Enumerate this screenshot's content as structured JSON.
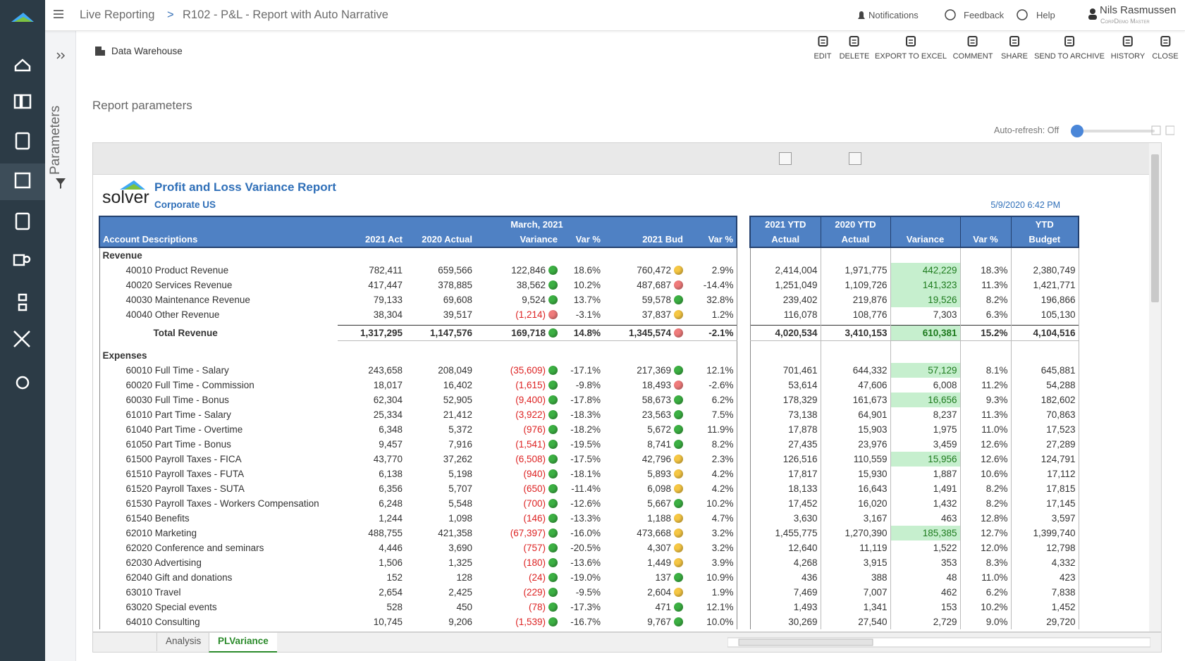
{
  "header": {
    "breadcrumb": [
      "Live Reporting",
      "R102 - P&L - Report with Auto Narrative"
    ],
    "separator": ">",
    "notifications": "Notifications",
    "feedback": "Feedback",
    "help": "Help",
    "user": "Nils Rasmussen",
    "company": "CorpDemo Master"
  },
  "toolbar": {
    "source": "Data Warehouse",
    "actions": [
      "EDIT",
      "DELETE",
      "EXPORT TO EXCEL",
      "COMMENT",
      "SHARE",
      "SEND TO ARCHIVE",
      "HISTORY",
      "CLOSE"
    ]
  },
  "sidebar": {
    "parameters": "Parameters"
  },
  "parameters": {
    "title": "Report parameters",
    "auto_refresh": "Auto-refresh: Off"
  },
  "report": {
    "logo": "solver",
    "title": "Profit and Loss Variance Report",
    "subtitle": "Corporate US",
    "timestamp": "5/9/2020 6:42 PM",
    "columns": {
      "account": "Account Descriptions",
      "period": "March, 2021",
      "period_columns": [
        "2021 Act",
        "2020 Actual",
        "Variance",
        "Var %",
        "2021 Bud",
        "Var %"
      ],
      "ytd_columns": [
        [
          "2021 YTD",
          "Actual"
        ],
        [
          "2020 YTD",
          "Actual"
        ],
        [
          "Variance"
        ],
        [
          "Var %"
        ],
        [
          "YTD",
          "Budget"
        ]
      ]
    },
    "sections": [
      {
        "title": "Revenue",
        "rows": [
          {
            "label": "40010 Product Revenue",
            "cells": [
              "782,411",
              "659,566",
              "122,846",
              "18.6%",
              "760,472",
              "2.9%",
              "2,414,004",
              "1,971,775",
              "442,229",
              "18.3%",
              "2,380,749"
            ],
            "status": [
              "green",
              "yellow"
            ],
            "highlight": true
          },
          {
            "label": "40020 Services Revenue",
            "cells": [
              "417,447",
              "378,885",
              "38,562",
              "10.2%",
              "487,687",
              "-14.4%",
              "1,251,049",
              "1,109,726",
              "141,323",
              "11.3%",
              "1,421,771"
            ],
            "status": [
              "green",
              "red"
            ],
            "highlight": true
          },
          {
            "label": "40030 Maintenance Revenue",
            "cells": [
              "79,133",
              "69,608",
              "9,524",
              "13.7%",
              "59,578",
              "32.8%",
              "239,402",
              "219,876",
              "19,526",
              "8.2%",
              "196,866"
            ],
            "status": [
              "green",
              "green"
            ],
            "highlight": true
          },
          {
            "label": "40040 Other Revenue",
            "cells": [
              "38,304",
              "39,517",
              "(1,214)",
              "-3.1%",
              "37,837",
              "1.2%",
              "116,078",
              "108,776",
              "7,303",
              "6.3%",
              "105,130"
            ],
            "status": [
              "red",
              "yellow"
            ]
          }
        ],
        "total": {
          "label": "Total Revenue",
          "cells": [
            "1,317,295",
            "1,147,576",
            "169,718",
            "14.8%",
            "1,345,574",
            "-2.1%",
            "4,020,534",
            "3,410,153",
            "610,381",
            "15.2%",
            "4,104,516"
          ],
          "status": [
            "green",
            "red"
          ],
          "highlight": true
        }
      },
      {
        "title": "Expenses",
        "rows": [
          {
            "label": "60010 Full Time - Salary",
            "cells": [
              "243,658",
              "208,049",
              "(35,609)",
              "-17.1%",
              "217,369",
              "12.1%",
              "701,461",
              "644,332",
              "57,129",
              "8.1%",
              "645,881"
            ],
            "status": [
              "green",
              "green"
            ],
            "highlight": true
          },
          {
            "label": "60020 Full Time - Commission",
            "cells": [
              "18,017",
              "16,402",
              "(1,615)",
              "-9.8%",
              "18,493",
              "-2.6%",
              "53,614",
              "47,606",
              "6,008",
              "11.2%",
              "54,288"
            ],
            "status": [
              "green",
              "red"
            ]
          },
          {
            "label": "60030 Full Time - Bonus",
            "cells": [
              "62,304",
              "52,905",
              "(9,400)",
              "-17.8%",
              "58,673",
              "6.2%",
              "178,329",
              "161,673",
              "16,656",
              "9.3%",
              "182,602"
            ],
            "status": [
              "green",
              "green"
            ],
            "highlight": true
          },
          {
            "label": "61010 Part Time - Salary",
            "cells": [
              "25,334",
              "21,412",
              "(3,922)",
              "-18.3%",
              "23,563",
              "7.5%",
              "73,138",
              "64,901",
              "8,237",
              "11.3%",
              "70,863"
            ],
            "status": [
              "green",
              "green"
            ]
          },
          {
            "label": "61040 Part Time - Overtime",
            "cells": [
              "6,348",
              "5,372",
              "(976)",
              "-18.2%",
              "5,672",
              "11.9%",
              "17,878",
              "15,903",
              "1,975",
              "11.0%",
              "17,523"
            ],
            "status": [
              "green",
              "green"
            ]
          },
          {
            "label": "61050 Part Time - Bonus",
            "cells": [
              "9,457",
              "7,916",
              "(1,541)",
              "-19.5%",
              "8,741",
              "8.2%",
              "27,435",
              "23,976",
              "3,459",
              "12.6%",
              "27,289"
            ],
            "status": [
              "green",
              "green"
            ]
          },
          {
            "label": "61500 Payroll Taxes - FICA",
            "cells": [
              "43,770",
              "37,262",
              "(6,508)",
              "-17.5%",
              "42,796",
              "2.3%",
              "126,516",
              "110,559",
              "15,956",
              "12.6%",
              "124,791"
            ],
            "status": [
              "green",
              "yellow"
            ],
            "highlight": true
          },
          {
            "label": "61510 Payroll Taxes - FUTA",
            "cells": [
              "6,138",
              "5,198",
              "(940)",
              "-18.1%",
              "5,893",
              "4.2%",
              "17,817",
              "15,930",
              "1,887",
              "10.6%",
              "17,112"
            ],
            "status": [
              "green",
              "yellow"
            ]
          },
          {
            "label": "61520 Payroll Taxes - SUTA",
            "cells": [
              "6,356",
              "5,707",
              "(650)",
              "-11.4%",
              "6,098",
              "4.2%",
              "18,133",
              "16,643",
              "1,491",
              "8.2%",
              "17,815"
            ],
            "status": [
              "green",
              "yellow"
            ]
          },
          {
            "label": "61530 Payroll Taxes - Workers Compensation",
            "cells": [
              "6,248",
              "5,548",
              "(700)",
              "-12.6%",
              "5,667",
              "10.2%",
              "17,452",
              "16,020",
              "1,432",
              "8.2%",
              "17,145"
            ],
            "status": [
              "green",
              "green"
            ]
          },
          {
            "label": "61540 Benefits",
            "cells": [
              "1,244",
              "1,098",
              "(146)",
              "-13.3%",
              "1,188",
              "4.7%",
              "3,630",
              "3,167",
              "463",
              "12.8%",
              "3,597"
            ],
            "status": [
              "green",
              "yellow"
            ]
          },
          {
            "label": "62010 Marketing",
            "cells": [
              "488,755",
              "421,358",
              "(67,397)",
              "-16.0%",
              "473,668",
              "3.2%",
              "1,455,775",
              "1,270,390",
              "185,385",
              "12.7%",
              "1,399,740"
            ],
            "status": [
              "green",
              "yellow"
            ],
            "highlight": true
          },
          {
            "label": "62020 Conference and seminars",
            "cells": [
              "4,446",
              "3,690",
              "(757)",
              "-20.5%",
              "4,307",
              "3.2%",
              "12,640",
              "11,119",
              "1,522",
              "12.0%",
              "12,798"
            ],
            "status": [
              "green",
              "yellow"
            ]
          },
          {
            "label": "62030 Advertising",
            "cells": [
              "1,506",
              "1,325",
              "(180)",
              "-13.6%",
              "1,449",
              "3.9%",
              "4,268",
              "3,915",
              "353",
              "8.3%",
              "4,332"
            ],
            "status": [
              "green",
              "yellow"
            ]
          },
          {
            "label": "62040 Gift and donations",
            "cells": [
              "152",
              "128",
              "(24)",
              "-19.0%",
              "137",
              "10.9%",
              "436",
              "388",
              "48",
              "11.0%",
              "423"
            ],
            "status": [
              "green",
              "green"
            ]
          },
          {
            "label": "63010 Travel",
            "cells": [
              "2,654",
              "2,425",
              "(229)",
              "-9.5%",
              "2,604",
              "1.9%",
              "7,469",
              "7,007",
              "462",
              "6.2%",
              "7,838"
            ],
            "status": [
              "green",
              "yellow"
            ]
          },
          {
            "label": "63020 Special events",
            "cells": [
              "528",
              "450",
              "(78)",
              "-17.3%",
              "471",
              "12.1%",
              "1,493",
              "1,341",
              "153",
              "10.2%",
              "1,452"
            ],
            "status": [
              "green",
              "green"
            ]
          },
          {
            "label": "64010 Consulting",
            "cells": [
              "10,745",
              "9,206",
              "(1,539)",
              "-16.7%",
              "9,767",
              "10.0%",
              "30,269",
              "27,540",
              "2,729",
              "9.0%",
              "29,720"
            ],
            "status": [
              "green",
              "green"
            ]
          }
        ]
      }
    ]
  },
  "tabs": [
    "Analysis",
    "PLVariance"
  ],
  "active_tab": 1
}
